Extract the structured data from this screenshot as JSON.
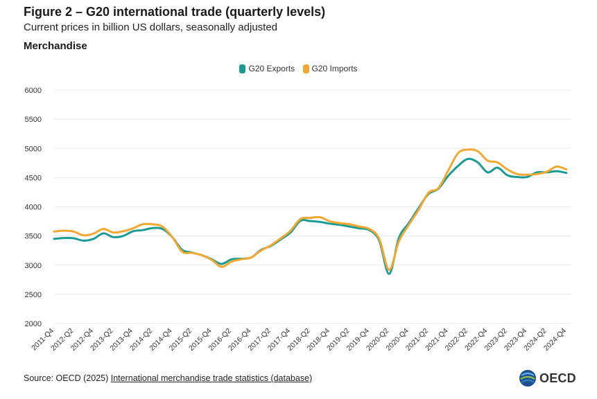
{
  "header": {
    "title": "Figure 2 – G20 international trade (quarterly levels)",
    "subtitle": "Current prices in billion US dollars, seasonally adjusted",
    "panel_title": "Merchandise"
  },
  "footer": {
    "source_prefix": "Source: OECD (2025) ",
    "source_link": "International merchandise trade statistics (database)",
    "logo_text": "OECD"
  },
  "colors": {
    "exports": "#1a9c94",
    "imports": "#f0a830",
    "grid": "#e8e8e8",
    "text": "#333333"
  },
  "chart_data": {
    "type": "line",
    "ylim": [
      2000,
      6000
    ],
    "yticks": [
      2000,
      2500,
      3000,
      3500,
      4000,
      4500,
      5000,
      5500,
      6000
    ],
    "grid": true,
    "legend_position": "top-center",
    "x": [
      "2011-Q4",
      "2012-Q1",
      "2012-Q2",
      "2012-Q3",
      "2012-Q4",
      "2013-Q1",
      "2013-Q2",
      "2013-Q3",
      "2013-Q4",
      "2014-Q1",
      "2014-Q2",
      "2014-Q3",
      "2014-Q4",
      "2015-Q1",
      "2015-Q2",
      "2015-Q3",
      "2015-Q4",
      "2016-Q1",
      "2016-Q2",
      "2016-Q3",
      "2016-Q4",
      "2017-Q1",
      "2017-Q2",
      "2017-Q3",
      "2017-Q4",
      "2018-Q1",
      "2018-Q2",
      "2018-Q3",
      "2018-Q4",
      "2019-Q1",
      "2019-Q2",
      "2019-Q3",
      "2019-Q4",
      "2020-Q1",
      "2020-Q2",
      "2020-Q3",
      "2020-Q4",
      "2021-Q1",
      "2021-Q2",
      "2021-Q3",
      "2021-Q4",
      "2022-Q1",
      "2022-Q2",
      "2022-Q3",
      "2022-Q4",
      "2023-Q1",
      "2023-Q2",
      "2023-Q3",
      "2023-Q4",
      "2024-Q1",
      "2024-Q2",
      "2024-Q3",
      "2024-Q4"
    ],
    "tick_labels": [
      "2011-Q4",
      "2012-Q2",
      "2012-Q4",
      "2013-Q2",
      "2013-Q4",
      "2014-Q2",
      "2014-Q4",
      "2015-Q2",
      "2015-Q4",
      "2016-Q2",
      "2016-Q4",
      "2017-Q2",
      "2017-Q4",
      "2018-Q2",
      "2018-Q4",
      "2019-Q2",
      "2019-Q4",
      "2020-Q2",
      "2020-Q4",
      "2021-Q2",
      "2021-Q4",
      "2022-Q2",
      "2022-Q4",
      "2023-Q2",
      "2023-Q4",
      "2024-Q2",
      "2024-Q4"
    ],
    "series": [
      {
        "name": "G20 Exports",
        "values": [
          3450,
          3465,
          3460,
          3420,
          3450,
          3545,
          3480,
          3500,
          3580,
          3600,
          3635,
          3620,
          3480,
          3260,
          3215,
          3170,
          3100,
          3020,
          3100,
          3110,
          3130,
          3260,
          3330,
          3440,
          3560,
          3760,
          3755,
          3740,
          3710,
          3690,
          3660,
          3630,
          3600,
          3420,
          2850,
          3470,
          3720,
          3980,
          4220,
          4310,
          4530,
          4700,
          4820,
          4760,
          4590,
          4670,
          4540,
          4510,
          4510,
          4590,
          4590,
          4610,
          4580
        ]
      },
      {
        "name": "G20 Imports",
        "values": [
          3575,
          3590,
          3575,
          3510,
          3540,
          3620,
          3560,
          3580,
          3630,
          3700,
          3700,
          3660,
          3480,
          3230,
          3210,
          3170,
          3090,
          2970,
          3060,
          3100,
          3130,
          3250,
          3340,
          3460,
          3590,
          3790,
          3810,
          3820,
          3750,
          3720,
          3700,
          3660,
          3620,
          3450,
          2920,
          3410,
          3690,
          3950,
          4240,
          4320,
          4620,
          4920,
          4980,
          4950,
          4790,
          4760,
          4640,
          4560,
          4550,
          4560,
          4600,
          4690,
          4640
        ]
      }
    ]
  }
}
